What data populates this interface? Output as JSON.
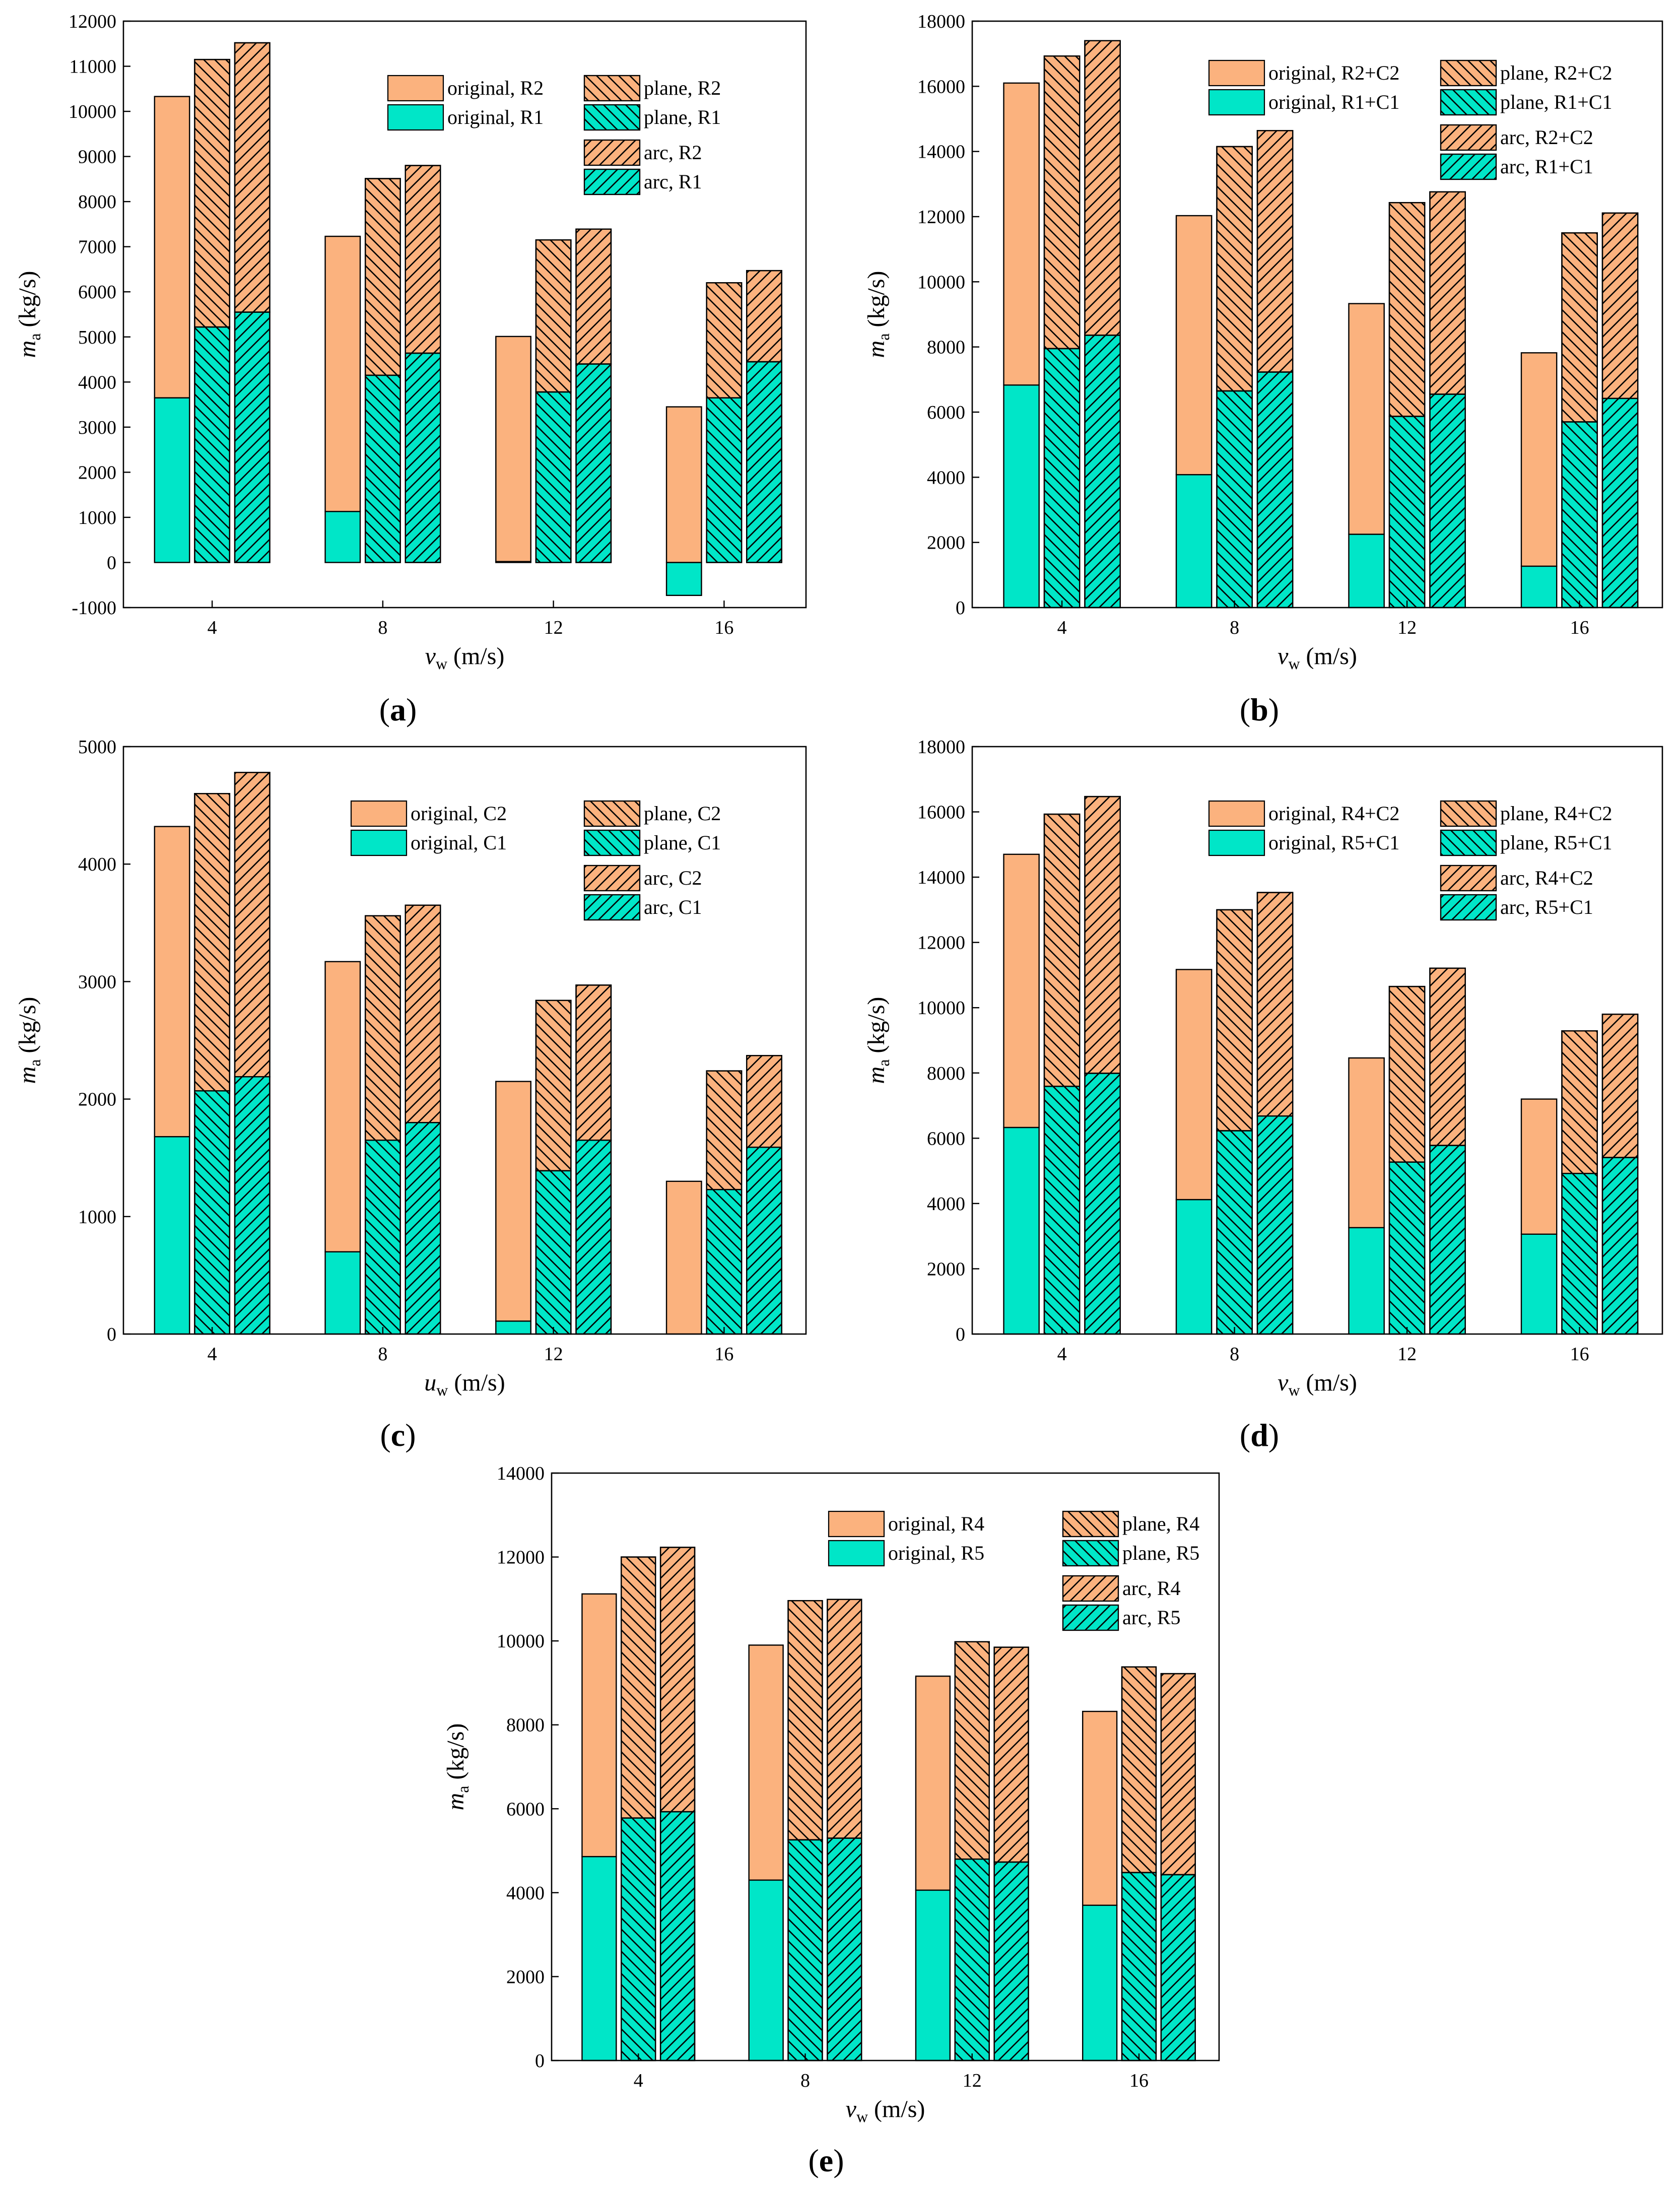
{
  "colors": {
    "orange": "#fbb27e",
    "teal": "#00e6c8",
    "stroke": "#000000"
  },
  "chart_data": [
    {
      "type": "bar",
      "panel": "(a)",
      "panel_letter": "a",
      "xlabel": "v_w (m/s)",
      "xlabel_main": "v",
      "xlabel_sub": "w",
      "xlabel_unit": " (m/s)",
      "ylabel": "m_a (kg/s)",
      "ylabel_main": "m",
      "ylabel_sub": "a",
      "ylabel_unit": " (kg/s)",
      "categories": [
        "4",
        "8",
        "12",
        "16"
      ],
      "ylim": [
        -1000,
        12000
      ],
      "yticks": [
        "-1000",
        "0",
        "1000",
        "2000",
        "3000",
        "4000",
        "5000",
        "6000",
        "7000",
        "8000",
        "9000",
        "10000",
        "11000",
        "12000"
      ],
      "series": [
        {
          "name": "original",
          "top_label": "original, R2",
          "bottom_label": "original, R1",
          "hatch": "none",
          "total": [
            10330,
            7230,
            5010,
            3450
          ],
          "bottom": [
            3650,
            1130,
            20,
            -730
          ]
        },
        {
          "name": "plane",
          "top_label": "plane, R2",
          "bottom_label": "plane, R1",
          "hatch": "back",
          "total": [
            11150,
            8510,
            7150,
            6200
          ],
          "bottom": [
            5220,
            4150,
            3780,
            3650
          ]
        },
        {
          "name": "arc",
          "top_label": "arc, R2",
          "bottom_label": "arc, R1",
          "hatch": "fwd",
          "total": [
            11520,
            8800,
            7390,
            6470
          ],
          "bottom": [
            5550,
            4640,
            4400,
            4450
          ]
        }
      ]
    },
    {
      "type": "bar",
      "panel": "(b)",
      "panel_letter": "b",
      "xlabel": "v_w (m/s)",
      "xlabel_main": "v",
      "xlabel_sub": "w",
      "xlabel_unit": " (m/s)",
      "ylabel": "m_a (kg/s)",
      "ylabel_main": "m",
      "ylabel_sub": "a",
      "ylabel_unit": " (kg/s)",
      "categories": [
        "4",
        "8",
        "12",
        "16"
      ],
      "ylim": [
        0,
        18000
      ],
      "yticks": [
        "0",
        "2000",
        "4000",
        "6000",
        "8000",
        "10000",
        "12000",
        "14000",
        "16000",
        "18000"
      ],
      "series": [
        {
          "name": "original",
          "top_label": "original, R2+C2",
          "bottom_label": "original, R1+C1",
          "hatch": "none",
          "total": [
            16100,
            12030,
            9330,
            7820
          ],
          "bottom": [
            6830,
            4080,
            2250,
            1270
          ]
        },
        {
          "name": "plane",
          "top_label": "plane, R2+C2",
          "bottom_label": "plane, R1+C1",
          "hatch": "back",
          "total": [
            16930,
            14150,
            12430,
            11500
          ],
          "bottom": [
            7950,
            6650,
            5870,
            5700
          ]
        },
        {
          "name": "arc",
          "top_label": "arc, R2+C2",
          "bottom_label": "arc, R1+C1",
          "hatch": "fwd",
          "total": [
            17400,
            14640,
            12760,
            12110
          ],
          "bottom": [
            8360,
            7230,
            6550,
            6420
          ]
        }
      ]
    },
    {
      "type": "bar",
      "panel": "(c)",
      "panel_letter": "c",
      "xlabel": "u_w (m/s)",
      "xlabel_main": "u",
      "xlabel_sub": "w",
      "xlabel_unit": " (m/s)",
      "ylabel": "m_a (kg/s)",
      "ylabel_main": "m",
      "ylabel_sub": "a",
      "ylabel_unit": " (kg/s)",
      "categories": [
        "4",
        "8",
        "12",
        "16"
      ],
      "ylim": [
        0,
        5000
      ],
      "yticks": [
        "0",
        "1000",
        "2000",
        "3000",
        "4000",
        "5000"
      ],
      "series": [
        {
          "name": "original",
          "top_label": "original, C2",
          "bottom_label": "original, C1",
          "hatch": "none",
          "total": [
            4320,
            3170,
            2150,
            1300
          ],
          "bottom": [
            1680,
            700,
            110,
            0
          ]
        },
        {
          "name": "plane",
          "top_label": "plane, C2",
          "bottom_label": "plane, C1",
          "hatch": "back",
          "total": [
            4600,
            3560,
            2840,
            2240
          ],
          "bottom": [
            2070,
            1650,
            1390,
            1230
          ]
        },
        {
          "name": "arc",
          "top_label": "arc, C2",
          "bottom_label": "arc, C1",
          "hatch": "fwd",
          "total": [
            4780,
            3650,
            2970,
            2370
          ],
          "bottom": [
            2190,
            1800,
            1650,
            1590
          ]
        }
      ]
    },
    {
      "type": "bar",
      "panel": "(d)",
      "panel_letter": "d",
      "xlabel": "v_w (m/s)",
      "xlabel_main": "v",
      "xlabel_sub": "w",
      "xlabel_unit": " (m/s)",
      "ylabel": "m_a (kg/s)",
      "ylabel_main": "m",
      "ylabel_sub": "a",
      "ylabel_unit": " (kg/s)",
      "categories": [
        "4",
        "8",
        "12",
        "16"
      ],
      "ylim": [
        0,
        18000
      ],
      "yticks": [
        "0",
        "2000",
        "4000",
        "6000",
        "8000",
        "10000",
        "12000",
        "14000",
        "16000",
        "18000"
      ],
      "series": [
        {
          "name": "original",
          "top_label": "original, R4+C2",
          "bottom_label": "original, R5+C1",
          "hatch": "none",
          "total": [
            14700,
            11170,
            8460,
            7200
          ],
          "bottom": [
            6330,
            4120,
            3260,
            3060
          ]
        },
        {
          "name": "plane",
          "top_label": "plane, R4+C2",
          "bottom_label": "plane, R5+C1",
          "hatch": "back",
          "total": [
            15930,
            13000,
            10650,
            9290
          ],
          "bottom": [
            7590,
            6230,
            5270,
            4920
          ]
        },
        {
          "name": "arc",
          "top_label": "arc, R4+C2",
          "bottom_label": "arc, R5+C1",
          "hatch": "fwd",
          "total": [
            16470,
            13530,
            11210,
            9800
          ],
          "bottom": [
            7990,
            6680,
            5780,
            5410
          ]
        }
      ]
    },
    {
      "type": "bar",
      "panel": "(e)",
      "panel_letter": "e",
      "xlabel": "v_w (m/s)",
      "xlabel_main": "v",
      "xlabel_sub": "w",
      "xlabel_unit": " (m/s)",
      "ylabel": "m_a (kg/s)",
      "ylabel_main": "m",
      "ylabel_sub": "a",
      "ylabel_unit": " (kg/s)",
      "categories": [
        "4",
        "8",
        "12",
        "16"
      ],
      "ylim": [
        0,
        14000
      ],
      "yticks": [
        "0",
        "2000",
        "4000",
        "6000",
        "8000",
        "10000",
        "12000",
        "14000"
      ],
      "series": [
        {
          "name": "original",
          "top_label": "original, R4",
          "bottom_label": "original, R5",
          "hatch": "none",
          "total": [
            11120,
            9900,
            9160,
            8320
          ],
          "bottom": [
            4860,
            4300,
            4060,
            3700
          ]
        },
        {
          "name": "plane",
          "top_label": "plane, R4",
          "bottom_label": "plane, R5",
          "hatch": "back",
          "total": [
            12000,
            10960,
            9980,
            9380
          ],
          "bottom": [
            5780,
            5260,
            4800,
            4480
          ]
        },
        {
          "name": "arc",
          "top_label": "arc, R4",
          "bottom_label": "arc, R5",
          "hatch": "fwd",
          "total": [
            12230,
            10990,
            9850,
            9220
          ],
          "bottom": [
            5930,
            5300,
            4730,
            4430
          ]
        }
      ]
    }
  ]
}
